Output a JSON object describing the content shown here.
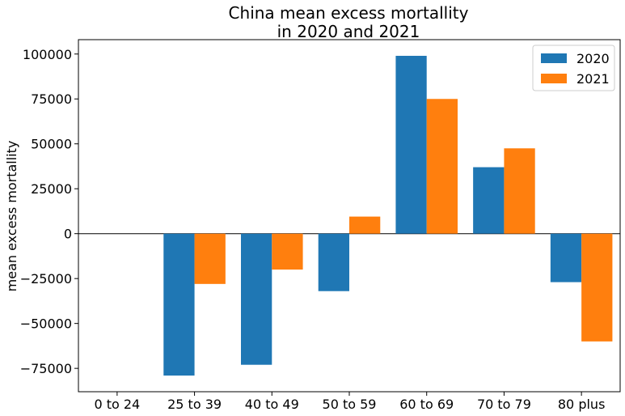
{
  "chart_data": {
    "type": "bar",
    "title_lines": [
      "China mean excess mortallity",
      "in 2020 and 2021"
    ],
    "xlabel": "",
    "ylabel": "mean excess mortallity",
    "categories": [
      "0 to 24",
      "25 to 39",
      "40 to 49",
      "50 to 59",
      "60 to 69",
      "70 to 79",
      "80 plus"
    ],
    "series": [
      {
        "name": "2020",
        "color": "#1f77b4",
        "values": [
          0,
          -79000,
          -73000,
          -32000,
          99000,
          37000,
          -27000
        ]
      },
      {
        "name": "2021",
        "color": "#ff7f0e",
        "values": [
          0,
          -28000,
          -20000,
          9500,
          75000,
          47500,
          -60000
        ]
      }
    ],
    "ylim": [
      -88000,
      108000
    ],
    "yticks": [
      -75000,
      -50000,
      -25000,
      0,
      25000,
      50000,
      75000,
      100000
    ],
    "ytick_labels": [
      "−75000",
      "−50000",
      "−25000",
      "0",
      "25000",
      "50000",
      "75000",
      "100000"
    ],
    "zero_line": true,
    "grid": false,
    "legend": {
      "position": "top-right",
      "entries": [
        "2020",
        "2021"
      ]
    }
  }
}
